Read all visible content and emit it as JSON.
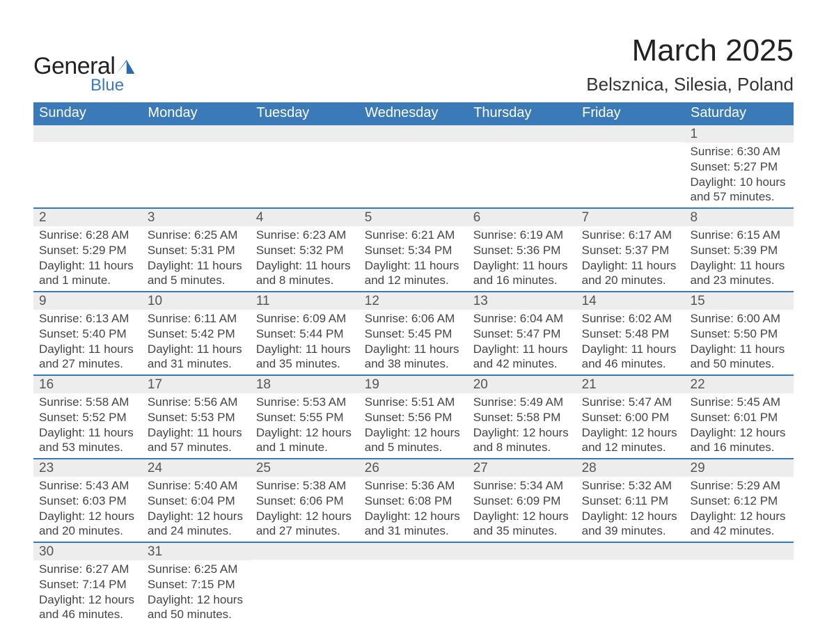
{
  "brand": {
    "word1": "General",
    "word2": "Blue"
  },
  "title": "March 2025",
  "location": "Belsznica, Silesia, Poland",
  "colors": {
    "header_bg": "#3a7ab8",
    "header_text": "#ffffff",
    "daynum_bg": "#ededed",
    "daynum_text": "#555555",
    "body_text": "#444444",
    "rule": "#3a7ab8",
    "page_bg": "#ffffff"
  },
  "typography": {
    "title_fontsize": 44,
    "location_fontsize": 26,
    "dayheader_fontsize": 20,
    "daynum_fontsize": 19,
    "body_fontsize": 17
  },
  "day_headers": [
    "Sunday",
    "Monday",
    "Tuesday",
    "Wednesday",
    "Thursday",
    "Friday",
    "Saturday"
  ],
  "labels": {
    "sunrise": "Sunrise:",
    "sunset": "Sunset:",
    "daylight": "Daylight:"
  },
  "weeks": [
    [
      {
        "n": "",
        "sunrise": "",
        "sunset": "",
        "daylight": ""
      },
      {
        "n": "",
        "sunrise": "",
        "sunset": "",
        "daylight": ""
      },
      {
        "n": "",
        "sunrise": "",
        "sunset": "",
        "daylight": ""
      },
      {
        "n": "",
        "sunrise": "",
        "sunset": "",
        "daylight": ""
      },
      {
        "n": "",
        "sunrise": "",
        "sunset": "",
        "daylight": ""
      },
      {
        "n": "",
        "sunrise": "",
        "sunset": "",
        "daylight": ""
      },
      {
        "n": "1",
        "sunrise": "6:30 AM",
        "sunset": "5:27 PM",
        "daylight": "10 hours and 57 minutes."
      }
    ],
    [
      {
        "n": "2",
        "sunrise": "6:28 AM",
        "sunset": "5:29 PM",
        "daylight": "11 hours and 1 minute."
      },
      {
        "n": "3",
        "sunrise": "6:25 AM",
        "sunset": "5:31 PM",
        "daylight": "11 hours and 5 minutes."
      },
      {
        "n": "4",
        "sunrise": "6:23 AM",
        "sunset": "5:32 PM",
        "daylight": "11 hours and 8 minutes."
      },
      {
        "n": "5",
        "sunrise": "6:21 AM",
        "sunset": "5:34 PM",
        "daylight": "11 hours and 12 minutes."
      },
      {
        "n": "6",
        "sunrise": "6:19 AM",
        "sunset": "5:36 PM",
        "daylight": "11 hours and 16 minutes."
      },
      {
        "n": "7",
        "sunrise": "6:17 AM",
        "sunset": "5:37 PM",
        "daylight": "11 hours and 20 minutes."
      },
      {
        "n": "8",
        "sunrise": "6:15 AM",
        "sunset": "5:39 PM",
        "daylight": "11 hours and 23 minutes."
      }
    ],
    [
      {
        "n": "9",
        "sunrise": "6:13 AM",
        "sunset": "5:40 PM",
        "daylight": "11 hours and 27 minutes."
      },
      {
        "n": "10",
        "sunrise": "6:11 AM",
        "sunset": "5:42 PM",
        "daylight": "11 hours and 31 minutes."
      },
      {
        "n": "11",
        "sunrise": "6:09 AM",
        "sunset": "5:44 PM",
        "daylight": "11 hours and 35 minutes."
      },
      {
        "n": "12",
        "sunrise": "6:06 AM",
        "sunset": "5:45 PM",
        "daylight": "11 hours and 38 minutes."
      },
      {
        "n": "13",
        "sunrise": "6:04 AM",
        "sunset": "5:47 PM",
        "daylight": "11 hours and 42 minutes."
      },
      {
        "n": "14",
        "sunrise": "6:02 AM",
        "sunset": "5:48 PM",
        "daylight": "11 hours and 46 minutes."
      },
      {
        "n": "15",
        "sunrise": "6:00 AM",
        "sunset": "5:50 PM",
        "daylight": "11 hours and 50 minutes."
      }
    ],
    [
      {
        "n": "16",
        "sunrise": "5:58 AM",
        "sunset": "5:52 PM",
        "daylight": "11 hours and 53 minutes."
      },
      {
        "n": "17",
        "sunrise": "5:56 AM",
        "sunset": "5:53 PM",
        "daylight": "11 hours and 57 minutes."
      },
      {
        "n": "18",
        "sunrise": "5:53 AM",
        "sunset": "5:55 PM",
        "daylight": "12 hours and 1 minute."
      },
      {
        "n": "19",
        "sunrise": "5:51 AM",
        "sunset": "5:56 PM",
        "daylight": "12 hours and 5 minutes."
      },
      {
        "n": "20",
        "sunrise": "5:49 AM",
        "sunset": "5:58 PM",
        "daylight": "12 hours and 8 minutes."
      },
      {
        "n": "21",
        "sunrise": "5:47 AM",
        "sunset": "6:00 PM",
        "daylight": "12 hours and 12 minutes."
      },
      {
        "n": "22",
        "sunrise": "5:45 AM",
        "sunset": "6:01 PM",
        "daylight": "12 hours and 16 minutes."
      }
    ],
    [
      {
        "n": "23",
        "sunrise": "5:43 AM",
        "sunset": "6:03 PM",
        "daylight": "12 hours and 20 minutes."
      },
      {
        "n": "24",
        "sunrise": "5:40 AM",
        "sunset": "6:04 PM",
        "daylight": "12 hours and 24 minutes."
      },
      {
        "n": "25",
        "sunrise": "5:38 AM",
        "sunset": "6:06 PM",
        "daylight": "12 hours and 27 minutes."
      },
      {
        "n": "26",
        "sunrise": "5:36 AM",
        "sunset": "6:08 PM",
        "daylight": "12 hours and 31 minutes."
      },
      {
        "n": "27",
        "sunrise": "5:34 AM",
        "sunset": "6:09 PM",
        "daylight": "12 hours and 35 minutes."
      },
      {
        "n": "28",
        "sunrise": "5:32 AM",
        "sunset": "6:11 PM",
        "daylight": "12 hours and 39 minutes."
      },
      {
        "n": "29",
        "sunrise": "5:29 AM",
        "sunset": "6:12 PM",
        "daylight": "12 hours and 42 minutes."
      }
    ],
    [
      {
        "n": "30",
        "sunrise": "6:27 AM",
        "sunset": "7:14 PM",
        "daylight": "12 hours and 46 minutes."
      },
      {
        "n": "31",
        "sunrise": "6:25 AM",
        "sunset": "7:15 PM",
        "daylight": "12 hours and 50 minutes."
      },
      {
        "n": "",
        "sunrise": "",
        "sunset": "",
        "daylight": ""
      },
      {
        "n": "",
        "sunrise": "",
        "sunset": "",
        "daylight": ""
      },
      {
        "n": "",
        "sunrise": "",
        "sunset": "",
        "daylight": ""
      },
      {
        "n": "",
        "sunrise": "",
        "sunset": "",
        "daylight": ""
      },
      {
        "n": "",
        "sunrise": "",
        "sunset": "",
        "daylight": ""
      }
    ]
  ]
}
